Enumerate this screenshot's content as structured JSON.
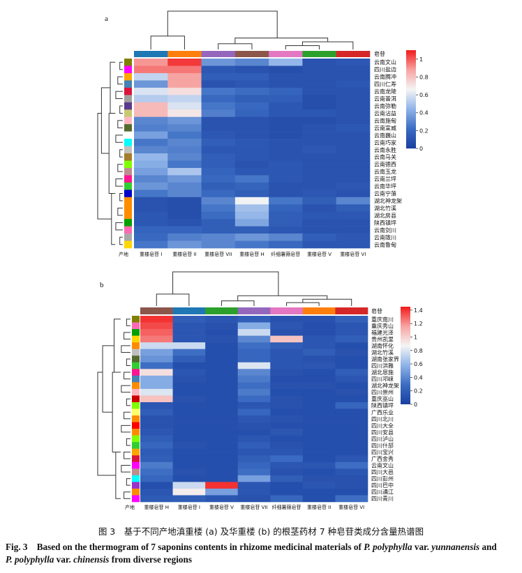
{
  "chart_data": [
    {
      "type": "heatmap",
      "panel_label": "a",
      "column_group_label": "皂苷",
      "row_group_label": "产地",
      "columns": [
        "重楼皂苷 I",
        "重楼皂苷 II",
        "重楼皂苷 VII",
        "重楼皂苷 H",
        "纤细薯蓣皂苷",
        "重楼皂苷 V",
        "重楼皂苷 VI"
      ],
      "column_colors": [
        "#1f77b4",
        "#ff7f0e",
        "#9467bd",
        "#8c564b",
        "#e377c2",
        "#2ca02c",
        "#d62728"
      ],
      "rows": [
        "云南文山",
        "四川盐边",
        "云南腾冲",
        "四川仁寿",
        "云南龙陵",
        "云南普洱",
        "云南弥勒",
        "云南沾益",
        "云南施甸",
        "云南宣威",
        "云南巍山",
        "云南巧家",
        "云南永胜",
        "云南马关",
        "云南德西",
        "云南玉龙",
        "云南兰坪",
        "云南华坪",
        "云南宁蒗",
        "湖北神龙架",
        "湖北竹溪",
        "湖北房县",
        "陕西镇坪",
        "云南剑川",
        "云南陇川",
        "云南鲁甸"
      ],
      "row_colors": [
        "#808000",
        "#ff00ff",
        "#ffa500",
        "#4682b4",
        "#dc143c",
        "#a0a0a0",
        "#5b3a8c",
        "#c8c870",
        "#ffb6c1",
        "#556b2f",
        "#ffffff",
        "#00ffff",
        "#c0c0c0",
        "#a67c2d",
        "#7fff00",
        "#bc8f8f",
        "#ff1493",
        "#32cd32",
        "#0000cd",
        "#ff8c00",
        "#ff8c00",
        "#ff8c00",
        "#00a000",
        "#ff69b4",
        "#a9a9a9",
        "#ffd700"
      ],
      "values": [
        [
          0.9,
          1.05,
          0.35,
          0.3,
          0.45,
          0.1,
          0.12
        ],
        [
          0.95,
          0.95,
          0.12,
          0.1,
          0.08,
          0.1,
          0.1
        ],
        [
          0.55,
          0.88,
          0.15,
          0.15,
          0.1,
          0.1,
          0.1
        ],
        [
          0.35,
          0.88,
          0.1,
          0.12,
          0.1,
          0.1,
          0.12
        ],
        [
          0.6,
          0.72,
          0.25,
          0.22,
          0.18,
          0.1,
          0.1
        ],
        [
          0.52,
          0.55,
          0.2,
          0.15,
          0.15,
          0.08,
          0.1
        ],
        [
          0.82,
          0.6,
          0.25,
          0.2,
          0.12,
          0.08,
          0.1
        ],
        [
          0.82,
          0.7,
          0.28,
          0.18,
          0.12,
          0.12,
          0.1
        ],
        [
          0.3,
          0.35,
          0.1,
          0.1,
          0.08,
          0.08,
          0.1
        ],
        [
          0.28,
          0.3,
          0.1,
          0.1,
          0.08,
          0.1,
          0.12
        ],
        [
          0.38,
          0.25,
          0.12,
          0.1,
          0.08,
          0.1,
          0.1
        ],
        [
          0.25,
          0.3,
          0.15,
          0.12,
          0.1,
          0.1,
          0.1
        ],
        [
          0.3,
          0.28,
          0.12,
          0.12,
          0.1,
          0.12,
          0.1
        ],
        [
          0.45,
          0.3,
          0.15,
          0.12,
          0.1,
          0.1,
          0.1
        ],
        [
          0.42,
          0.25,
          0.15,
          0.1,
          0.12,
          0.1,
          0.1
        ],
        [
          0.38,
          0.5,
          0.18,
          0.12,
          0.12,
          0.1,
          0.1
        ],
        [
          0.3,
          0.35,
          0.2,
          0.25,
          0.12,
          0.1,
          0.1
        ],
        [
          0.35,
          0.3,
          0.15,
          0.18,
          0.1,
          0.1,
          0.12
        ],
        [
          0.25,
          0.3,
          0.2,
          0.15,
          0.1,
          0.12,
          0.1
        ],
        [
          0.1,
          0.08,
          0.3,
          0.65,
          0.25,
          0.15,
          0.3
        ],
        [
          0.1,
          0.08,
          0.25,
          0.48,
          0.18,
          0.1,
          0.15
        ],
        [
          0.12,
          0.08,
          0.22,
          0.45,
          0.15,
          0.12,
          0.12
        ],
        [
          0.12,
          0.1,
          0.15,
          0.4,
          0.15,
          0.1,
          0.1
        ],
        [
          0.18,
          0.18,
          0.15,
          0.15,
          0.12,
          0.1,
          0.1
        ],
        [
          0.2,
          0.28,
          0.3,
          0.35,
          0.3,
          0.15,
          0.12
        ],
        [
          0.25,
          0.35,
          0.3,
          0.25,
          0.2,
          0.12,
          0.12
        ]
      ],
      "colorbar": {
        "min": 0,
        "max": 1.1,
        "ticks": [
          0,
          0.2,
          0.4,
          0.6,
          0.8,
          1.0
        ],
        "colors": [
          "#1a3fa0",
          "#3b6cc2",
          "#8fb3e8",
          "#f5f5f5",
          "#f6a4a2",
          "#f21a1a"
        ]
      }
    },
    {
      "type": "heatmap",
      "panel_label": "b",
      "column_group_label": "皂苷",
      "row_group_label": "产地",
      "columns": [
        "重楼皂苷 H",
        "重楼皂苷 I",
        "重楼皂苷 V",
        "重楼皂苷 VII",
        "纤细薯蓣皂苷",
        "重楼皂苷 II",
        "重楼皂苷 VI"
      ],
      "column_colors": [
        "#8c564b",
        "#1f77b4",
        "#2ca02c",
        "#9467bd",
        "#e377c2",
        "#ff7f0e",
        "#d62728"
      ],
      "rows": [
        "重庆南川",
        "重庆秀山",
        "福建光泽",
        "贵州凯里",
        "湖南怀化",
        "湖北竹溪",
        "湖南张家界",
        "四川洪雅",
        "湖北恩施",
        "四川邛崃",
        "湖北神龙架",
        "四川崇州",
        "重庆巫山",
        "陕西镇坪",
        "广西乐业",
        "四川北川",
        "四川大全",
        "四川安县",
        "四川泸山",
        "四川什邡",
        "四川宝兴",
        "广西金秀",
        "云南文山",
        "四川大邑",
        "四川彭州",
        "四川巴中",
        "四川通江",
        "四川青川"
      ],
      "row_colors": [
        "#808000",
        "#ff69b4",
        "#00a000",
        "#ffd700",
        "#ff8c00",
        "#c0c0c0",
        "#556b2f",
        "#32cd32",
        "#ff1493",
        "#4682b4",
        "#ff8c00",
        "#ffb6c1",
        "#cc0000",
        "#7fff00",
        "#ffff66",
        "#ff8c00",
        "#ff0000",
        "#ff8c00",
        "#7fff00",
        "#32cd32",
        "#ffa500",
        "#dc143c",
        "#ff00ff",
        "#bc8f8f",
        "#00ffff",
        "#9932cc",
        "#ff8c00",
        "#ff00ff"
      ],
      "values": [
        [
          1.4,
          0.2,
          0.15,
          0.2,
          0.12,
          0.12,
          0.22
        ],
        [
          1.35,
          0.15,
          0.12,
          0.55,
          0.15,
          0.1,
          0.15
        ],
        [
          1.3,
          0.15,
          0.1,
          0.75,
          0.12,
          0.1,
          0.15
        ],
        [
          1.25,
          0.15,
          0.12,
          0.4,
          1.05,
          0.15,
          0.2
        ],
        [
          0.75,
          0.75,
          0.1,
          0.3,
          0.2,
          0.15,
          0.1
        ],
        [
          0.5,
          0.3,
          0.1,
          0.25,
          0.15,
          0.2,
          0.12
        ],
        [
          0.45,
          0.2,
          0.1,
          0.25,
          0.15,
          0.12,
          0.1
        ],
        [
          0.3,
          0.1,
          0.1,
          0.8,
          0.15,
          0.15,
          0.1
        ],
        [
          0.95,
          0.15,
          0.1,
          0.4,
          0.12,
          0.1,
          0.2
        ],
        [
          0.55,
          0.12,
          0.1,
          0.35,
          0.1,
          0.1,
          0.15
        ],
        [
          0.55,
          0.1,
          0.1,
          0.3,
          0.12,
          0.12,
          0.1
        ],
        [
          0.8,
          0.1,
          0.1,
          0.35,
          0.1,
          0.1,
          0.12
        ],
        [
          1.05,
          0.12,
          0.1,
          0.28,
          0.12,
          0.1,
          0.1
        ],
        [
          0.15,
          0.1,
          0.1,
          0.15,
          0.12,
          0.1,
          0.25
        ],
        [
          0.2,
          0.1,
          0.1,
          0.25,
          0.1,
          0.1,
          0.1
        ],
        [
          0.12,
          0.1,
          0.1,
          0.15,
          0.12,
          0.1,
          0.1
        ],
        [
          0.12,
          0.1,
          0.1,
          0.12,
          0.1,
          0.1,
          0.1
        ],
        [
          0.15,
          0.1,
          0.1,
          0.1,
          0.15,
          0.1,
          0.1
        ],
        [
          0.2,
          0.1,
          0.1,
          0.15,
          0.1,
          0.1,
          0.1
        ],
        [
          0.25,
          0.12,
          0.1,
          0.2,
          0.12,
          0.1,
          0.1
        ],
        [
          0.18,
          0.1,
          0.1,
          0.15,
          0.15,
          0.1,
          0.1
        ],
        [
          0.2,
          0.1,
          0.1,
          0.2,
          0.28,
          0.1,
          0.15
        ],
        [
          0.35,
          0.1,
          0.1,
          0.25,
          0.15,
          0.15,
          0.3
        ],
        [
          0.3,
          0.12,
          0.1,
          0.3,
          0.12,
          0.1,
          0.15
        ],
        [
          0.25,
          0.1,
          0.1,
          0.5,
          0.2,
          0.12,
          0.12
        ],
        [
          0.1,
          0.75,
          1.4,
          0.15,
          0.1,
          0.15,
          0.12
        ],
        [
          0.15,
          0.9,
          0.5,
          0.15,
          0.1,
          0.1,
          0.1
        ],
        [
          0.18,
          0.2,
          0.15,
          0.12,
          0.25,
          0.1,
          0.3
        ]
      ],
      "colorbar": {
        "min": 0,
        "max": 1.45,
        "ticks": [
          0,
          0.2,
          0.4,
          0.6,
          0.8,
          1.0,
          1.2,
          1.4
        ],
        "colors": [
          "#1a3fa0",
          "#3b6cc2",
          "#8fb3e8",
          "#f5f5f5",
          "#f6a4a2",
          "#f21a1a"
        ]
      }
    }
  ],
  "caption": {
    "cn": "图 3　基于不同产地滇重楼 (a) 及华重楼 (b) 的根茎药材 7 种皂苷类成分含量热谱图",
    "en_prefix": "Fig. 3　Based on the thermogram of 7 saponins contents in rhizome medicinal materials of ",
    "en_species1": "P. polyphylla",
    "en_var1": " var. ",
    "en_variety1": "yunnanensis",
    "en_and": " and",
    "en_species2": "P. polyphylla",
    "en_var2": " var. ",
    "en_variety2": "chinensis",
    "en_suffix": " from diverse regions"
  }
}
